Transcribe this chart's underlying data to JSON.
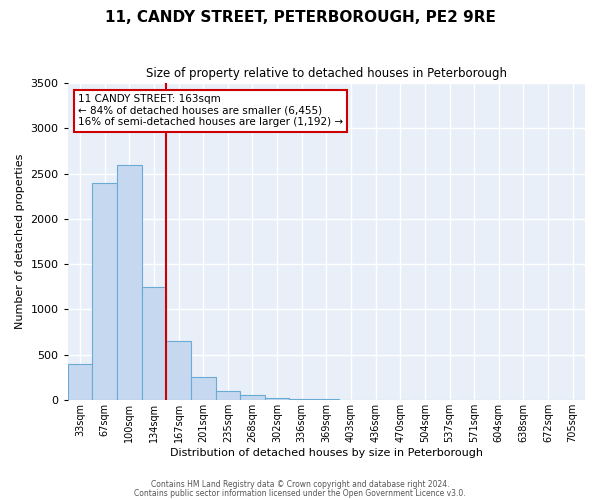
{
  "title": "11, CANDY STREET, PETERBOROUGH, PE2 9RE",
  "subtitle": "Size of property relative to detached houses in Peterborough",
  "xlabel": "Distribution of detached houses by size in Peterborough",
  "ylabel": "Number of detached properties",
  "bar_color": "#c5d8f0",
  "bar_edge_color": "#6aaad4",
  "plot_bg_color": "#e8eff8",
  "fig_bg_color": "#ffffff",
  "categories": [
    "33sqm",
    "67sqm",
    "100sqm",
    "134sqm",
    "167sqm",
    "201sqm",
    "235sqm",
    "268sqm",
    "302sqm",
    "336sqm",
    "369sqm",
    "403sqm",
    "436sqm",
    "470sqm",
    "504sqm",
    "537sqm",
    "571sqm",
    "604sqm",
    "638sqm",
    "672sqm",
    "705sqm"
  ],
  "values": [
    400,
    2400,
    2600,
    1250,
    650,
    250,
    100,
    50,
    25,
    10,
    5,
    0,
    0,
    0,
    0,
    0,
    0,
    0,
    0,
    0,
    0
  ],
  "ylim": [
    0,
    3500
  ],
  "yticks": [
    0,
    500,
    1000,
    1500,
    2000,
    2500,
    3000,
    3500
  ],
  "red_line_index": 4,
  "annotation_title": "11 CANDY STREET: 163sqm",
  "annotation_line1": "← 84% of detached houses are smaller (6,455)",
  "annotation_line2": "16% of semi-detached houses are larger (1,192) →",
  "annotation_border_color": "#cc0000",
  "red_line_color": "#cc0000",
  "footer1": "Contains HM Land Registry data © Crown copyright and database right 2024.",
  "footer2": "Contains public sector information licensed under the Open Government Licence v3.0."
}
